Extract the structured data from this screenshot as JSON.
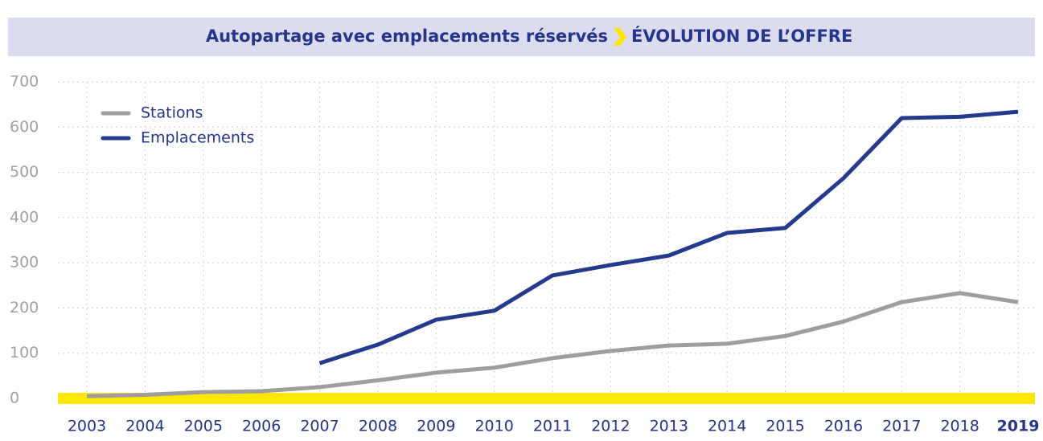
{
  "chart_data": {
    "type": "line",
    "title": "Autopartage avec emplacements réservés",
    "subtitle": "ÉVOLUTION DE L’OFFRE",
    "categories": [
      "2003",
      "2004",
      "2005",
      "2006",
      "2007",
      "2008",
      "2009",
      "2010",
      "2011",
      "2012",
      "2013",
      "2014",
      "2015",
      "2016",
      "2017",
      "2018",
      "2019"
    ],
    "series": [
      {
        "name": "Stations",
        "color": "#9e9e9e",
        "values": [
          5,
          8,
          14,
          16,
          25,
          40,
          57,
          68,
          89,
          105,
          117,
          121,
          138,
          170,
          213,
          233,
          213
        ]
      },
      {
        "name": "Emplacements",
        "color": "#243a8c",
        "values": [
          null,
          null,
          null,
          null,
          78,
          119,
          174,
          194,
          272,
          295,
          316,
          366,
          377,
          487,
          620,
          623,
          634
        ]
      }
    ],
    "ylim": [
      0,
      700
    ],
    "yticks": [
      0,
      100,
      200,
      300,
      400,
      500,
      600,
      700
    ],
    "grid": true,
    "legend": "upper left"
  }
}
